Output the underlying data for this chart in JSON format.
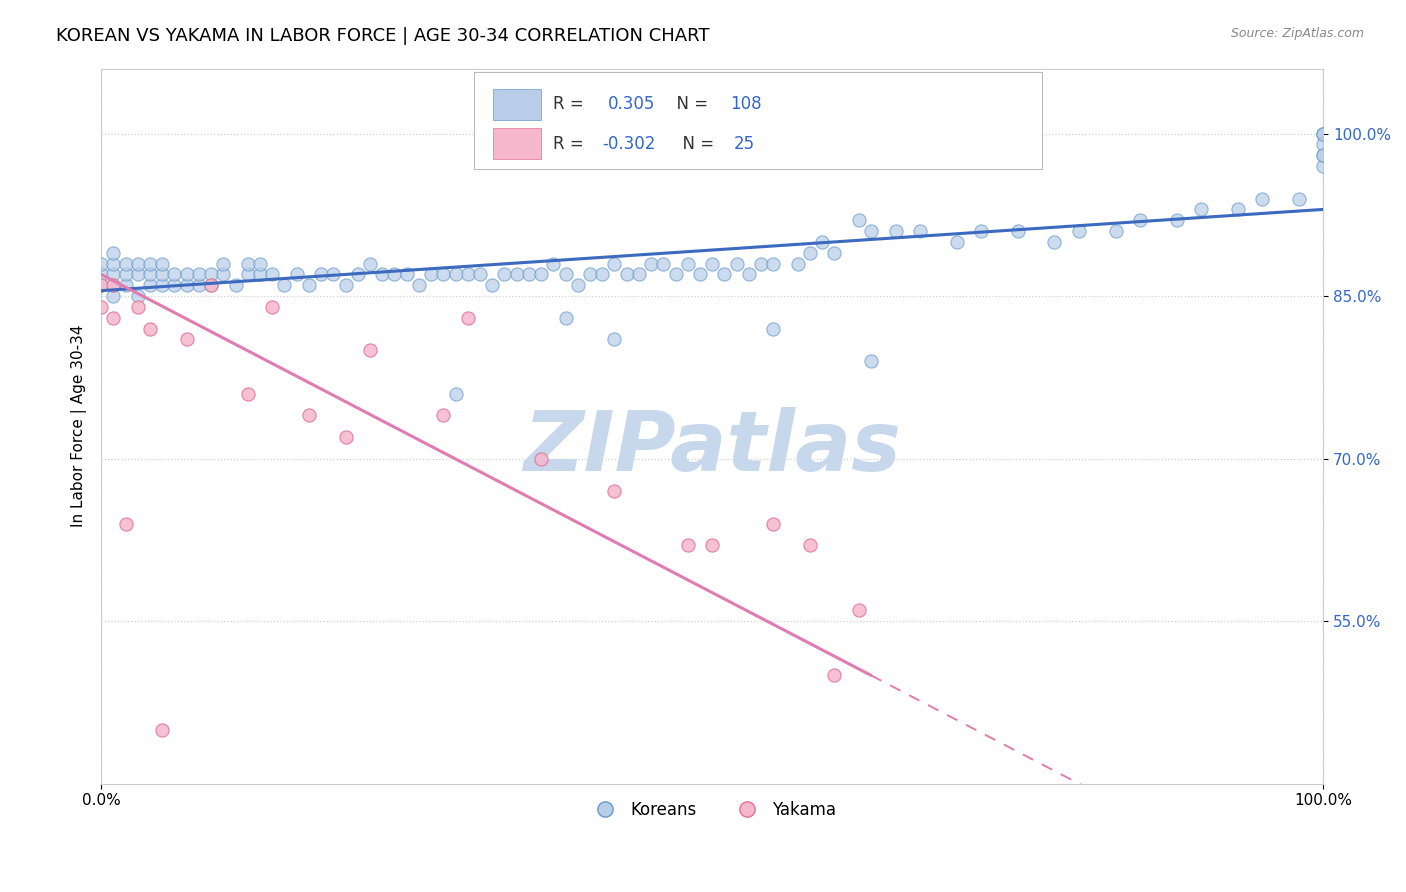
{
  "title": "KOREAN VS YAKAMA IN LABOR FORCE | AGE 30-34 CORRELATION CHART",
  "source_text": "Source: ZipAtlas.com",
  "ylabel": "In Labor Force | Age 30-34",
  "xlim": [
    0.0,
    1.0
  ],
  "ylim": [
    0.4,
    1.06
  ],
  "yticks": [
    0.55,
    0.7,
    0.85,
    1.0
  ],
  "yticklabels": [
    "55.0%",
    "70.0%",
    "85.0%",
    "100.0%"
  ],
  "xticks": [
    0.0,
    1.0
  ],
  "xticklabels": [
    "0.0%",
    "100.0%"
  ],
  "watermark": "ZIPatlas",
  "korean_line_color": "#3b6abf",
  "yakama_line_color": "#e07cb0",
  "background_color": "#ffffff",
  "grid_color": "#d0d0d0",
  "title_fontsize": 13,
  "axis_label_fontsize": 11,
  "tick_fontsize": 11,
  "watermark_color": "#c8d8ec",
  "watermark_fontsize": 60,
  "korean_scatter_x": [
    0.0,
    0.0,
    0.0,
    0.01,
    0.01,
    0.01,
    0.01,
    0.01,
    0.02,
    0.02,
    0.02,
    0.03,
    0.03,
    0.03,
    0.04,
    0.04,
    0.04,
    0.05,
    0.05,
    0.05,
    0.06,
    0.06,
    0.07,
    0.07,
    0.08,
    0.08,
    0.09,
    0.09,
    0.1,
    0.1,
    0.11,
    0.12,
    0.12,
    0.13,
    0.13,
    0.14,
    0.15,
    0.16,
    0.17,
    0.18,
    0.19,
    0.2,
    0.21,
    0.22,
    0.23,
    0.24,
    0.25,
    0.26,
    0.27,
    0.28,
    0.29,
    0.3,
    0.31,
    0.32,
    0.33,
    0.34,
    0.35,
    0.36,
    0.37,
    0.38,
    0.39,
    0.4,
    0.41,
    0.42,
    0.43,
    0.44,
    0.45,
    0.46,
    0.47,
    0.48,
    0.49,
    0.5,
    0.51,
    0.52,
    0.53,
    0.54,
    0.55,
    0.57,
    0.58,
    0.59,
    0.6,
    0.62,
    0.63,
    0.65,
    0.67,
    0.7,
    0.72,
    0.75,
    0.78,
    0.8,
    0.83,
    0.85,
    0.88,
    0.9,
    0.93,
    0.95,
    0.98,
    1.0,
    1.0,
    1.0,
    1.0,
    1.0,
    1.0,
    1.0,
    0.38,
    0.29,
    0.55,
    0.42,
    0.63
  ],
  "korean_scatter_y": [
    0.86,
    0.87,
    0.88,
    0.85,
    0.86,
    0.87,
    0.88,
    0.89,
    0.86,
    0.87,
    0.88,
    0.85,
    0.87,
    0.88,
    0.86,
    0.87,
    0.88,
    0.86,
    0.87,
    0.88,
    0.86,
    0.87,
    0.86,
    0.87,
    0.86,
    0.87,
    0.86,
    0.87,
    0.87,
    0.88,
    0.86,
    0.87,
    0.88,
    0.87,
    0.88,
    0.87,
    0.86,
    0.87,
    0.86,
    0.87,
    0.87,
    0.86,
    0.87,
    0.88,
    0.87,
    0.87,
    0.87,
    0.86,
    0.87,
    0.87,
    0.87,
    0.87,
    0.87,
    0.86,
    0.87,
    0.87,
    0.87,
    0.87,
    0.88,
    0.87,
    0.86,
    0.87,
    0.87,
    0.88,
    0.87,
    0.87,
    0.88,
    0.88,
    0.87,
    0.88,
    0.87,
    0.88,
    0.87,
    0.88,
    0.87,
    0.88,
    0.88,
    0.88,
    0.89,
    0.9,
    0.89,
    0.92,
    0.91,
    0.91,
    0.91,
    0.9,
    0.91,
    0.91,
    0.9,
    0.91,
    0.91,
    0.92,
    0.92,
    0.93,
    0.93,
    0.94,
    0.94,
    0.97,
    0.98,
    1.0,
    1.0,
    0.99,
    0.98,
    1.0,
    0.83,
    0.76,
    0.82,
    0.81,
    0.79
  ],
  "yakama_scatter_x": [
    0.0,
    0.0,
    0.01,
    0.01,
    0.02,
    0.03,
    0.04,
    0.05,
    0.07,
    0.09,
    0.12,
    0.14,
    0.17,
    0.2,
    0.22,
    0.28,
    0.3,
    0.36,
    0.42,
    0.48,
    0.5,
    0.55,
    0.58,
    0.62,
    0.6
  ],
  "yakama_scatter_y": [
    0.86,
    0.84,
    0.86,
    0.83,
    0.64,
    0.84,
    0.82,
    0.45,
    0.81,
    0.86,
    0.76,
    0.84,
    0.74,
    0.72,
    0.8,
    0.74,
    0.83,
    0.7,
    0.67,
    0.62,
    0.62,
    0.64,
    0.62,
    0.56,
    0.5
  ]
}
